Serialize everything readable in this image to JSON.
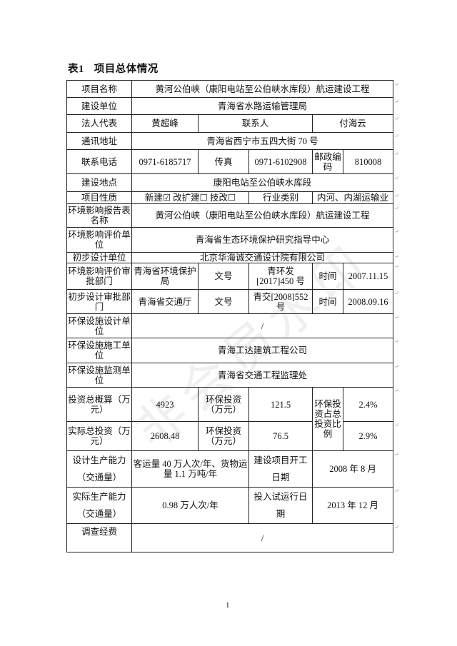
{
  "title": {
    "number": "表1",
    "text": "项目总体情况"
  },
  "rows": {
    "name": {
      "label": "项目名称",
      "value": "黄河公伯峡（康阳电站至公伯峡水库段）航运建设工程"
    },
    "builder": {
      "label": "建设单位",
      "value": "青海省水路运输管理局"
    },
    "legal": {
      "label": "法人代表",
      "value": "黄超峰",
      "contact_label": "联系人",
      "contact": "付海云"
    },
    "address": {
      "label": "通讯地址",
      "value": "青海省西宁市五四大街 70 号"
    },
    "phone": {
      "label": "联系电话",
      "value": "0971-6185717",
      "fax_label": "传真",
      "fax": "0971-6102908",
      "zip_label": "邮政编码",
      "zip": "810008"
    },
    "location": {
      "label": "建设地点",
      "value": "康阳电站至公伯峡水库段"
    },
    "nature": {
      "label": "项目性质",
      "value": "新建☑ 改扩建☐ 技改☐",
      "industry_label": "行业类别",
      "industry": "内河、内湖运输业"
    },
    "report": {
      "label": "环境影响报告表名称",
      "value": "黄河公伯峡（康阳电站至公伯峡水库段）航运建设工程"
    },
    "eia_unit": {
      "label": "环境影响评价单位",
      "value": "青海省生态环境保护研究指导中心"
    },
    "design_unit": {
      "label": "初步设计单位",
      "value": "北京华海诚交通设计院有限公司"
    },
    "eia_approval": {
      "label": "环境影响评价审批部门",
      "dept": "青海省环境保护局",
      "doc_label": "文号",
      "doc": "青环发[2017]450 号",
      "time_label": "时间",
      "time": "2007.11.15"
    },
    "design_approval": {
      "label": "初步设计审批部门",
      "dept": "青海省交通厅",
      "doc_label": "文号",
      "doc": "青交[2008]552 号",
      "time_label": "时间",
      "time": "2008.09.16"
    },
    "env_design": {
      "label": "环保设施设计单位",
      "value": "/"
    },
    "env_build": {
      "label": "环保设施施工单位",
      "value": "青海工达建筑工程公司"
    },
    "env_monitor": {
      "label": "环保设施监测单位",
      "value": "青海省交通工程监理处"
    },
    "invest_est": {
      "label": "投资总概算（万元）",
      "value": "4923",
      "env_label": "环保投资（万元）",
      "env": "121.5",
      "ratio_label": "环保投资占总投资比例",
      "ratio": "2.4%"
    },
    "invest_actual": {
      "label": "实际总投资（万元）",
      "value": "2608.48",
      "env_label": "环保投资（万元）",
      "env": "76.5",
      "ratio": "2.9%"
    },
    "design_capacity": {
      "label": "设计生产能力（交通量）",
      "value": "客运量 40 万人次/年、货物运量 1.1 万吨/年",
      "start_label": "建设项目开工日期",
      "start": "2008 年 8 月"
    },
    "actual_capacity": {
      "label": "实际生产能力（交通量）",
      "value": "0.98 万人次/年",
      "trial_label": "投入试运行日期",
      "trial": "2013 年 12 月"
    },
    "survey_cost": {
      "label": "调查经费",
      "value": "/"
    }
  },
  "watermark": "非会员水印",
  "page_number": "1"
}
